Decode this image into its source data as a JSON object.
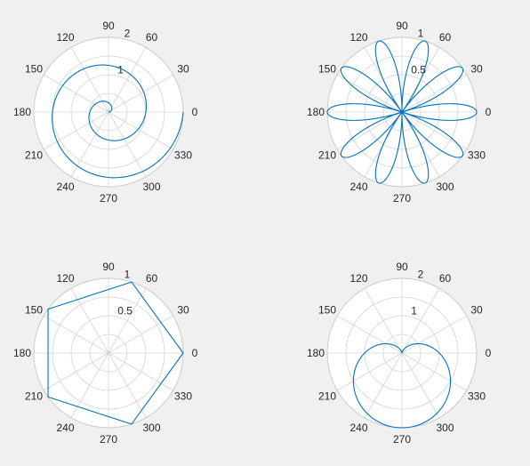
{
  "colors": {
    "background": "#f0f0f0",
    "plot_background": "#ffffff",
    "grid": "#d4d4d4",
    "series": "#0072bd"
  },
  "chart_data": [
    {
      "type": "line",
      "subtype": "polar",
      "curve": "spiral r = θ/(2π), θ from 0 to 4π",
      "theta_ticks_deg": [
        0,
        30,
        60,
        90,
        120,
        150,
        180,
        210,
        240,
        270,
        300,
        330
      ],
      "theta_tick_labels": [
        "0",
        "30",
        "60",
        "90",
        "120",
        "150",
        "180",
        "210",
        "240",
        "270",
        "300",
        "330"
      ],
      "rlim": [
        0,
        2
      ],
      "r_ticks": [
        0.5,
        1,
        1.5,
        2
      ],
      "r_tick_labels": [
        "",
        "1",
        "",
        "2"
      ],
      "r_label_angle_deg": 80,
      "grid": true,
      "series": [
        {
          "theta_deg": [
            0,
            90,
            180,
            270,
            360,
            450,
            540,
            630,
            720
          ],
          "r": [
            0,
            0.25,
            0.5,
            0.75,
            1.0,
            1.25,
            1.5,
            1.75,
            2.0
          ]
        }
      ]
    },
    {
      "type": "line",
      "subtype": "polar",
      "curve": "rose r = |cos(5θ)|",
      "theta_ticks_deg": [
        0,
        30,
        60,
        90,
        120,
        150,
        180,
        210,
        240,
        270,
        300,
        330
      ],
      "theta_tick_labels": [
        "0",
        "30",
        "60",
        "90",
        "120",
        "150",
        "180",
        "210",
        "240",
        "270",
        "300",
        "330"
      ],
      "rlim": [
        0,
        1
      ],
      "r_ticks": [
        0.25,
        0.5,
        0.75,
        1
      ],
      "r_tick_labels": [
        "",
        "0.5",
        "",
        "1"
      ],
      "r_label_angle_deg": 80,
      "grid": true,
      "series": [
        {
          "petal_angles_deg": [
            0,
            36,
            72,
            108,
            144,
            180,
            216,
            252,
            288,
            324
          ],
          "petal_peak_r": 1
        }
      ]
    },
    {
      "type": "line",
      "subtype": "polar",
      "curve": "pentagon, r = 1 at vertices",
      "theta_ticks_deg": [
        0,
        30,
        60,
        90,
        120,
        150,
        180,
        210,
        240,
        270,
        300,
        330
      ],
      "theta_tick_labels": [
        "0",
        "30",
        "60",
        "90",
        "120",
        "150",
        "180",
        "210",
        "240",
        "270",
        "300",
        "330"
      ],
      "rlim": [
        0,
        1
      ],
      "r_ticks": [
        0.25,
        0.5,
        0.75,
        1
      ],
      "r_tick_labels": [
        "",
        "0.5",
        "",
        "1"
      ],
      "r_label_angle_deg": 80,
      "grid": true,
      "series": [
        {
          "theta_deg": [
            0,
            72,
            144,
            216,
            288,
            360
          ],
          "r": [
            1,
            1,
            1,
            1,
            1,
            1
          ]
        }
      ]
    },
    {
      "type": "line",
      "subtype": "polar",
      "curve": "cardioid r = 1 − sin(θ)",
      "theta_ticks_deg": [
        0,
        30,
        60,
        90,
        120,
        150,
        180,
        210,
        240,
        270,
        300,
        330
      ],
      "theta_tick_labels": [
        "0",
        "30",
        "60",
        "90",
        "120",
        "150",
        "180",
        "210",
        "240",
        "270",
        "300",
        "330"
      ],
      "rlim": [
        0,
        2
      ],
      "r_ticks": [
        0.5,
        1,
        1.5,
        2
      ],
      "r_tick_labels": [
        "",
        "1",
        "",
        "2"
      ],
      "r_label_angle_deg": 80,
      "grid": true,
      "series": [
        {
          "theta_deg": [
            0,
            90,
            180,
            270,
            360
          ],
          "r": [
            1,
            0,
            1,
            2,
            1
          ]
        }
      ]
    }
  ]
}
